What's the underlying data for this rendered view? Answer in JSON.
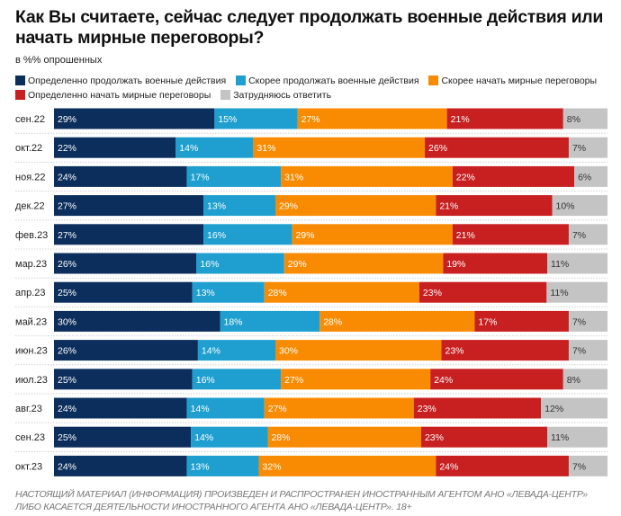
{
  "chart_data": {
    "type": "bar",
    "orientation": "horizontal",
    "stacked": true,
    "title": "Как Вы считаете, сейчас следует продолжать военные действия или начать мирные переговоры?",
    "subtitle": "в %% опрошенных",
    "categories": [
      "сен.22",
      "окт.22",
      "ноя.22",
      "дек.22",
      "фев.23",
      "мар.23",
      "апр.23",
      "май.23",
      "июн.23",
      "июл.23",
      "авг.23",
      "сен.23",
      "окт.23"
    ],
    "series": [
      {
        "name": "Определенно продолжать военные действия",
        "color": "#0c2e5c",
        "values": [
          29,
          22,
          24,
          27,
          27,
          26,
          25,
          30,
          26,
          25,
          24,
          25,
          24
        ]
      },
      {
        "name": "Скорее продолжать военные действия",
        "color": "#1e9fd0",
        "values": [
          15,
          14,
          17,
          13,
          16,
          16,
          13,
          18,
          14,
          16,
          14,
          14,
          13
        ]
      },
      {
        "name": "Скорее начать мирные переговоры",
        "color": "#f98b02",
        "values": [
          27,
          31,
          31,
          29,
          29,
          29,
          28,
          28,
          30,
          27,
          27,
          28,
          32
        ]
      },
      {
        "name": "Определенно начать мирные переговоры",
        "color": "#c81f20",
        "values": [
          21,
          26,
          22,
          21,
          21,
          19,
          23,
          17,
          23,
          24,
          23,
          23,
          24
        ]
      },
      {
        "name": "Затрудняюсь ответить",
        "color": "#c4c4c4",
        "values": [
          8,
          7,
          6,
          10,
          7,
          11,
          11,
          7,
          7,
          8,
          12,
          11,
          7
        ]
      }
    ],
    "value_suffix": "%",
    "legend_position": "top",
    "xlim": [
      0,
      100
    ]
  },
  "footer": {
    "line1": "НАСТОЯЩИЙ МАТЕРИАЛ (ИНФОРМАЦИЯ) ПРОИЗВЕДЕН И РАСПРОСТРАНЕН ИНОСТРАННЫМ АГЕНТОМ АНО «ЛЕВАДА-ЦЕНТР»",
    "line2": "ЛИБО КАСАЕТСЯ ДЕЯТЕЛЬНОСТИ ИНОСТРАННОГО АГЕНТА АНО «ЛЕВАДА-ЦЕНТР». 18+"
  }
}
